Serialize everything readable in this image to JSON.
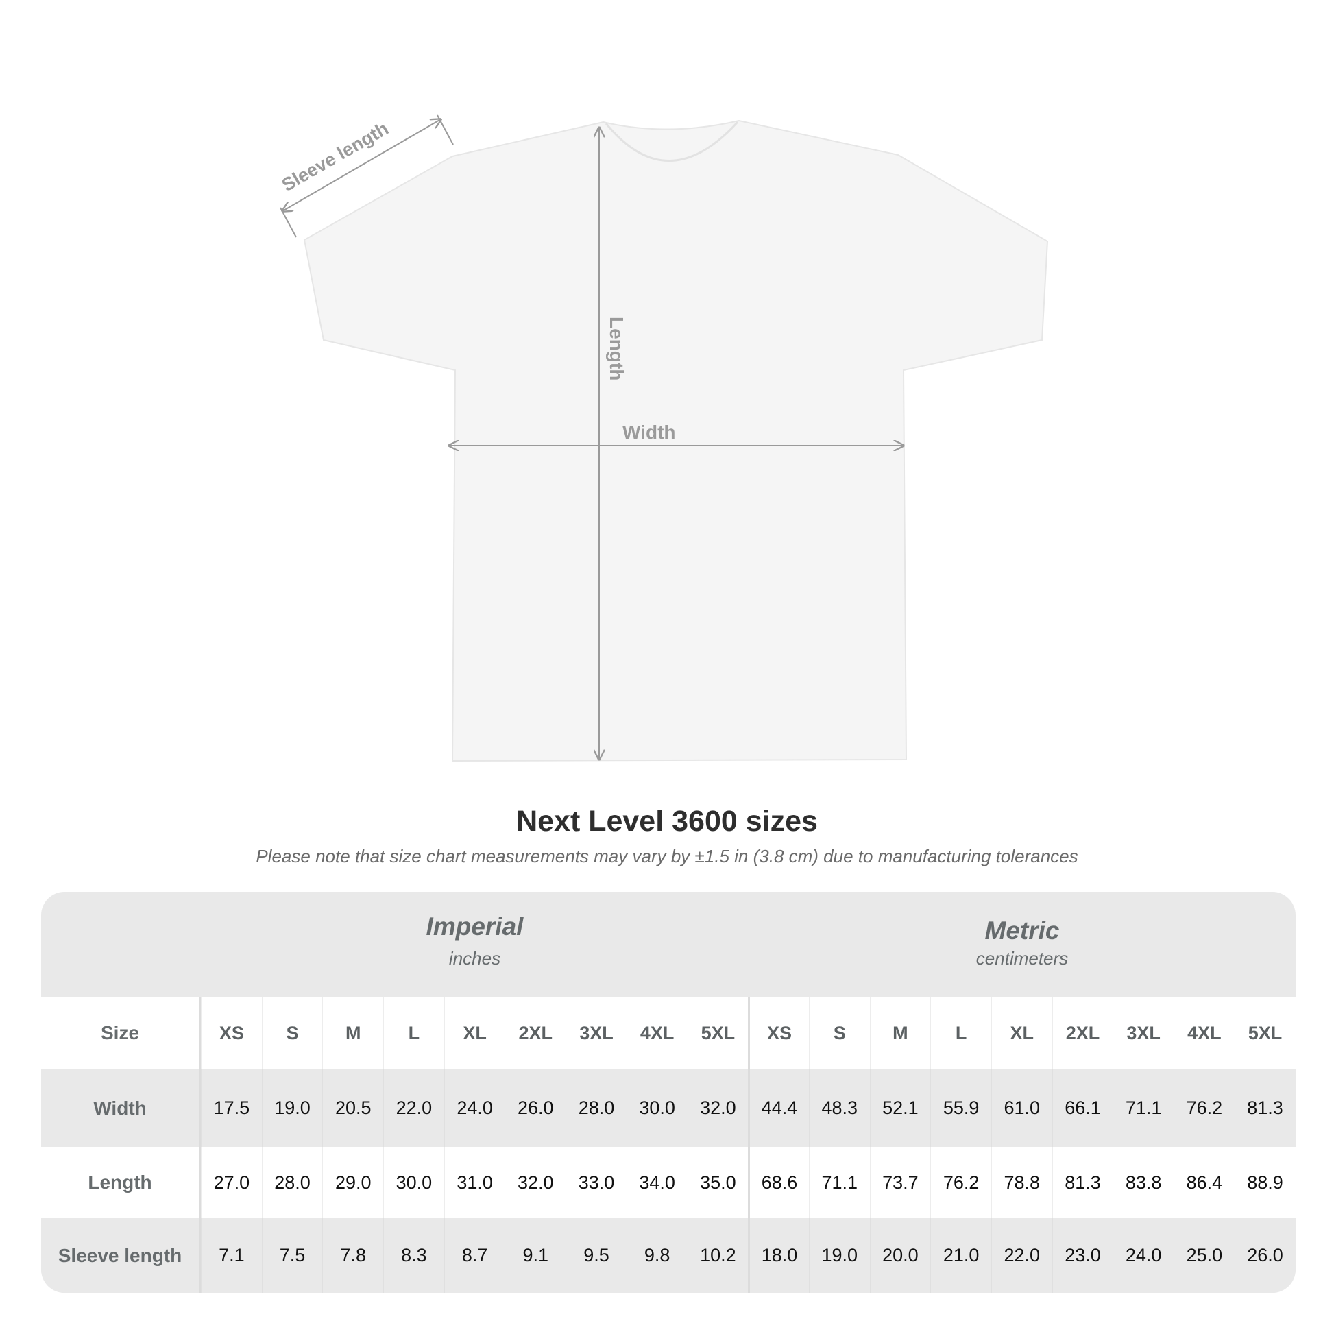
{
  "diagram": {
    "labels": {
      "sleeve": "Sleeve length",
      "length": "Length",
      "width": "Width"
    },
    "shirt_color": "#f6f6f6",
    "arrow_color": "#9a9a9a"
  },
  "title": "Next Level 3600 sizes",
  "note": "Please note that size chart measurements may vary by ±1.5 in (3.8 cm) due to manufacturing tolerances",
  "table": {
    "imperial": {
      "name": "Imperial",
      "unit": "inches"
    },
    "metric": {
      "name": "Metric",
      "unit": "centimeters"
    },
    "size_label": "Size",
    "sizes": [
      "XS",
      "S",
      "M",
      "L",
      "XL",
      "2XL",
      "3XL",
      "4XL",
      "5XL",
      "XS",
      "S",
      "M",
      "L",
      "XL",
      "2XL",
      "3XL",
      "4XL",
      "5XL"
    ],
    "rows": [
      {
        "label": "Width",
        "values": [
          "17.5",
          "19.0",
          "20.5",
          "22.0",
          "24.0",
          "26.0",
          "28.0",
          "30.0",
          "32.0",
          "44.4",
          "48.3",
          "52.1",
          "55.9",
          "61.0",
          "66.1",
          "71.1",
          "76.2",
          "81.3"
        ]
      },
      {
        "label": "Length",
        "values": [
          "27.0",
          "28.0",
          "29.0",
          "30.0",
          "31.0",
          "32.0",
          "33.0",
          "34.0",
          "35.0",
          "68.6",
          "71.1",
          "73.7",
          "76.2",
          "78.8",
          "81.3",
          "83.8",
          "86.4",
          "88.9"
        ]
      },
      {
        "label": "Sleeve length",
        "values": [
          "7.1",
          "7.5",
          "7.8",
          "8.3",
          "8.7",
          "9.1",
          "9.5",
          "9.8",
          "10.2",
          "18.0",
          "19.0",
          "20.0",
          "21.0",
          "22.0",
          "23.0",
          "24.0",
          "25.0",
          "26.0"
        ]
      }
    ]
  }
}
